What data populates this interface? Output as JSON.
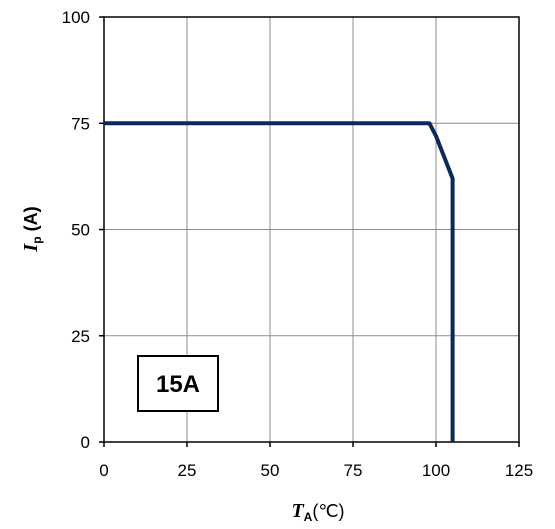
{
  "chart_data": {
    "type": "line",
    "title": "",
    "xlabel": {
      "symbol": "T",
      "subscript": "A",
      "unit": "(℃)"
    },
    "ylabel": {
      "symbol": "I",
      "subscript": "p",
      "unit": " (A)"
    },
    "xlim": [
      0,
      125
    ],
    "ylim": [
      0,
      100
    ],
    "x_ticks": [
      "0",
      "25",
      "50",
      "75",
      "100",
      "125"
    ],
    "y_ticks": [
      "0",
      "25",
      "50",
      "75",
      "100"
    ],
    "x_tick_values": [
      0,
      25,
      50,
      75,
      100,
      125
    ],
    "y_tick_values": [
      0,
      25,
      50,
      75,
      100
    ],
    "grid": true,
    "series": [
      {
        "color": "#0b2a5b",
        "x": [
          0,
          98,
          100,
          105,
          105
        ],
        "y": [
          75,
          75,
          72,
          62,
          0
        ]
      }
    ],
    "annotation": {
      "text": "15A"
    }
  }
}
